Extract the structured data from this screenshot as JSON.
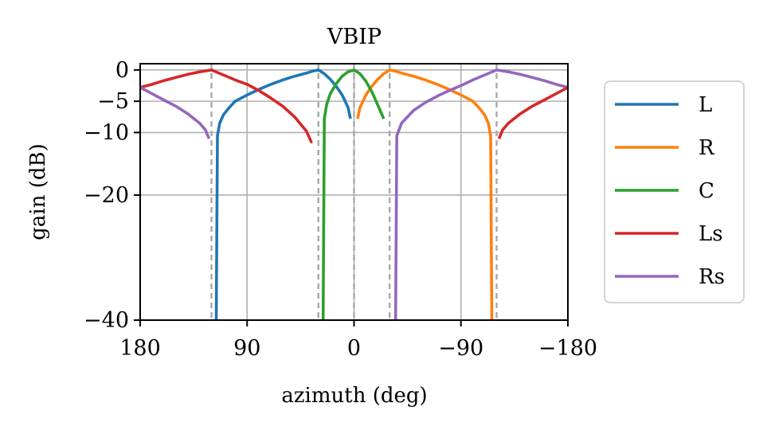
{
  "chart_data": {
    "type": "line",
    "title": "VBIP",
    "xlabel": "azimuth (deg)",
    "ylabel": "gain (dB)",
    "xlim": [
      180,
      -180
    ],
    "ylim": [
      -40,
      1
    ],
    "x_ticks": [
      180,
      90,
      0,
      -90,
      -180
    ],
    "x_tick_labels": [
      "180",
      "90",
      "0",
      "−90",
      "−180"
    ],
    "y_ticks": [
      0,
      -5,
      -10,
      -20,
      -40
    ],
    "y_tick_labels": [
      "0",
      "−5",
      "−10",
      "−20",
      "−40"
    ],
    "grid": true,
    "legend_position": "right, outside plot",
    "speaker_angles": [
      120,
      30,
      0,
      -30,
      -120
    ],
    "series": [
      {
        "name": "L",
        "color": "#1f77b4",
        "x": [
          116,
          115,
          113,
          110,
          105,
          100,
          90,
          80,
          70,
          60,
          50,
          40,
          35,
          30,
          25,
          20,
          15,
          10,
          5,
          3
        ],
        "y": [
          -40,
          -10.5,
          -8.5,
          -7.2,
          -6.0,
          -5.0,
          -4.0,
          -3.1,
          -2.3,
          -1.6,
          -1.0,
          -0.5,
          -0.2,
          0,
          -0.6,
          -1.5,
          -2.6,
          -4.0,
          -6.0,
          -7.8
        ]
      },
      {
        "name": "R",
        "color": "#ff7f0e",
        "x": [
          -3,
          -5,
          -10,
          -15,
          -20,
          -25,
          -30,
          -35,
          -40,
          -50,
          -60,
          -70,
          -80,
          -90,
          -100,
          -105,
          -110,
          -113,
          -115,
          -116
        ],
        "y": [
          -7.8,
          -6.0,
          -4.0,
          -2.6,
          -1.5,
          -0.6,
          0,
          -0.2,
          -0.5,
          -1.0,
          -1.6,
          -2.3,
          -3.1,
          -4.0,
          -5.0,
          -6.0,
          -7.2,
          -8.5,
          -10.5,
          -40
        ]
      },
      {
        "name": "C",
        "color": "#2ff0",
        "color_actual": "#2ca02c",
        "x": [
          26,
          25,
          23,
          20,
          15,
          10,
          5,
          0,
          -5,
          -10,
          -15,
          -20,
          -25
        ],
        "y": [
          -40,
          -7.8,
          -5.5,
          -3.8,
          -2.2,
          -1.0,
          -0.3,
          0,
          -0.6,
          -1.8,
          -3.5,
          -5.6,
          -7.8
        ]
      },
      {
        "name": "Ls",
        "color": "#d62728",
        "x": [
          180,
          170,
          160,
          150,
          140,
          130,
          120,
          110,
          100,
          90,
          80,
          70,
          60,
          50,
          40,
          36,
          35
        ],
        "y": [
          -2.8,
          -2.3,
          -1.7,
          -1.2,
          -0.7,
          -0.3,
          0,
          -0.8,
          -1.6,
          -2.3,
          -3.3,
          -4.5,
          -5.8,
          -7.5,
          -9.8,
          -11.5,
          -11.5
        ]
      },
      {
        "name": "Rs",
        "color": "#9467bd",
        "x": [
          -35,
          -36,
          -40,
          -50,
          -60,
          -70,
          -80,
          -90,
          -100,
          -110,
          -120,
          -130,
          -140,
          -150,
          -160,
          -170,
          -180
        ],
        "y": [
          -40,
          -10.5,
          -8.5,
          -6.5,
          -5.2,
          -4.2,
          -3.3,
          -2.5,
          -1.6,
          -0.8,
          0,
          -0.3,
          -0.7,
          -1.2,
          -1.7,
          -2.3,
          -2.8
        ]
      }
    ],
    "extra_segments": [
      {
        "series": "Rs",
        "color": "#9467bd",
        "x": [
          180,
          170,
          160,
          150,
          140,
          130,
          125,
          122
        ],
        "y": [
          -2.8,
          -3.8,
          -4.8,
          -5.8,
          -7.0,
          -8.5,
          -9.6,
          -11.0
        ]
      },
      {
        "series": "Ls",
        "color": "#d62728",
        "x": [
          -122,
          -125,
          -130,
          -140,
          -150,
          -160,
          -170,
          -180
        ],
        "y": [
          -11.0,
          -9.6,
          -8.5,
          -7.0,
          -5.8,
          -4.8,
          -3.8,
          -2.8
        ]
      }
    ]
  }
}
